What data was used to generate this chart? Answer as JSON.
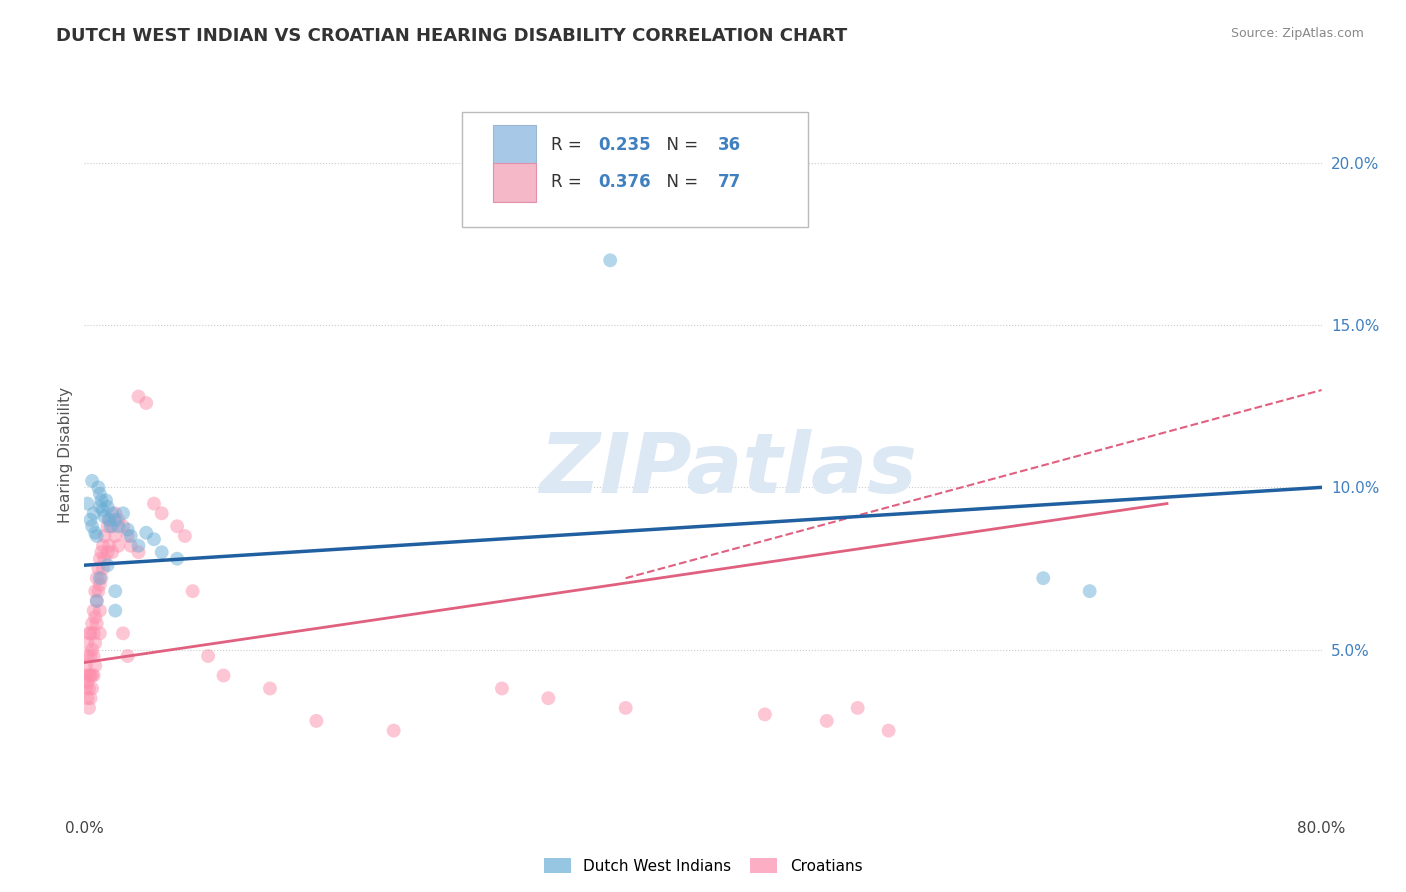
{
  "title": "DUTCH WEST INDIAN VS CROATIAN HEARING DISABILITY CORRELATION CHART",
  "source_text": "Source: ZipAtlas.com",
  "ylabel": "Hearing Disability",
  "xlim": [
    0,
    0.8
  ],
  "ylim": [
    0.0,
    0.22
  ],
  "xticks": [
    0.0,
    0.1,
    0.2,
    0.3,
    0.4,
    0.5,
    0.6,
    0.7,
    0.8
  ],
  "xticklabels": [
    "0.0%",
    "",
    "",
    "",
    "",
    "",
    "",
    "",
    "80.0%"
  ],
  "yticks": [
    0.05,
    0.1,
    0.15,
    0.2
  ],
  "yticklabels": [
    "5.0%",
    "10.0%",
    "15.0%",
    "20.0%"
  ],
  "legend1_r": "R = 0.235",
  "legend1_n": "N = 36",
  "legend2_r": "R = 0.376",
  "legend2_n": "N = 77",
  "legend1_color": "#a8c8e8",
  "legend2_color": "#f4b8c8",
  "blue_scatter_color": "#6baed6",
  "pink_scatter_color": "#fc8eac",
  "blue_line_color": "#2060a0",
  "pink_line_color": "#e06080",
  "right_tick_color": "#4080c0",
  "watermark_text": "ZIPatlas",
  "watermark_color": "#dde8f5",
  "background_color": "#ffffff",
  "grid_color": "#cccccc",
  "title_color": "#333333",
  "source_color": "#888888",
  "blue_scatter": [
    [
      0.002,
      0.095
    ],
    [
      0.004,
      0.09
    ],
    [
      0.005,
      0.088
    ],
    [
      0.006,
      0.092
    ],
    [
      0.007,
      0.086
    ],
    [
      0.008,
      0.085
    ],
    [
      0.009,
      0.1
    ],
    [
      0.01,
      0.098
    ],
    [
      0.01,
      0.094
    ],
    [
      0.011,
      0.096
    ],
    [
      0.012,
      0.093
    ],
    [
      0.013,
      0.091
    ],
    [
      0.014,
      0.096
    ],
    [
      0.015,
      0.094
    ],
    [
      0.016,
      0.09
    ],
    [
      0.017,
      0.088
    ],
    [
      0.018,
      0.092
    ],
    [
      0.02,
      0.09
    ],
    [
      0.022,
      0.088
    ],
    [
      0.025,
      0.092
    ],
    [
      0.028,
      0.087
    ],
    [
      0.03,
      0.085
    ],
    [
      0.035,
      0.082
    ],
    [
      0.04,
      0.086
    ],
    [
      0.045,
      0.084
    ],
    [
      0.05,
      0.08
    ],
    [
      0.06,
      0.078
    ],
    [
      0.005,
      0.102
    ],
    [
      0.008,
      0.065
    ],
    [
      0.01,
      0.072
    ],
    [
      0.015,
      0.076
    ],
    [
      0.02,
      0.068
    ],
    [
      0.34,
      0.17
    ],
    [
      0.62,
      0.072
    ],
    [
      0.65,
      0.068
    ],
    [
      0.02,
      0.062
    ]
  ],
  "pink_scatter": [
    [
      0.001,
      0.042
    ],
    [
      0.001,
      0.038
    ],
    [
      0.001,
      0.045
    ],
    [
      0.002,
      0.048
    ],
    [
      0.002,
      0.052
    ],
    [
      0.002,
      0.04
    ],
    [
      0.002,
      0.035
    ],
    [
      0.003,
      0.042
    ],
    [
      0.003,
      0.055
    ],
    [
      0.003,
      0.038
    ],
    [
      0.003,
      0.032
    ],
    [
      0.004,
      0.048
    ],
    [
      0.004,
      0.042
    ],
    [
      0.004,
      0.055
    ],
    [
      0.004,
      0.035
    ],
    [
      0.005,
      0.058
    ],
    [
      0.005,
      0.05
    ],
    [
      0.005,
      0.042
    ],
    [
      0.005,
      0.038
    ],
    [
      0.006,
      0.062
    ],
    [
      0.006,
      0.055
    ],
    [
      0.006,
      0.048
    ],
    [
      0.006,
      0.042
    ],
    [
      0.007,
      0.068
    ],
    [
      0.007,
      0.06
    ],
    [
      0.007,
      0.052
    ],
    [
      0.007,
      0.045
    ],
    [
      0.008,
      0.072
    ],
    [
      0.008,
      0.065
    ],
    [
      0.008,
      0.058
    ],
    [
      0.009,
      0.075
    ],
    [
      0.009,
      0.068
    ],
    [
      0.01,
      0.078
    ],
    [
      0.01,
      0.07
    ],
    [
      0.01,
      0.062
    ],
    [
      0.01,
      0.055
    ],
    [
      0.011,
      0.08
    ],
    [
      0.011,
      0.072
    ],
    [
      0.012,
      0.082
    ],
    [
      0.012,
      0.075
    ],
    [
      0.013,
      0.085
    ],
    [
      0.013,
      0.078
    ],
    [
      0.015,
      0.088
    ],
    [
      0.015,
      0.08
    ],
    [
      0.016,
      0.09
    ],
    [
      0.016,
      0.082
    ],
    [
      0.018,
      0.088
    ],
    [
      0.018,
      0.08
    ],
    [
      0.02,
      0.092
    ],
    [
      0.02,
      0.085
    ],
    [
      0.022,
      0.09
    ],
    [
      0.022,
      0.082
    ],
    [
      0.025,
      0.088
    ],
    [
      0.028,
      0.085
    ],
    [
      0.03,
      0.082
    ],
    [
      0.035,
      0.128
    ],
    [
      0.035,
      0.08
    ],
    [
      0.04,
      0.126
    ],
    [
      0.045,
      0.095
    ],
    [
      0.05,
      0.092
    ],
    [
      0.06,
      0.088
    ],
    [
      0.065,
      0.085
    ],
    [
      0.07,
      0.068
    ],
    [
      0.08,
      0.048
    ],
    [
      0.09,
      0.042
    ],
    [
      0.12,
      0.038
    ],
    [
      0.15,
      0.028
    ],
    [
      0.2,
      0.025
    ],
    [
      0.27,
      0.038
    ],
    [
      0.3,
      0.035
    ],
    [
      0.35,
      0.032
    ],
    [
      0.44,
      0.03
    ],
    [
      0.48,
      0.028
    ],
    [
      0.5,
      0.032
    ],
    [
      0.52,
      0.025
    ],
    [
      0.025,
      0.055
    ],
    [
      0.028,
      0.048
    ]
  ],
  "blue_line": {
    "x0": 0.0,
    "x1": 0.8,
    "y0": 0.076,
    "y1": 0.1
  },
  "pink_line": {
    "x0": 0.0,
    "x1": 0.7,
    "y0": 0.046,
    "y1": 0.095
  },
  "pink_dashed_line": {
    "x0": 0.35,
    "x1": 0.8,
    "y0": 0.072,
    "y1": 0.13
  }
}
